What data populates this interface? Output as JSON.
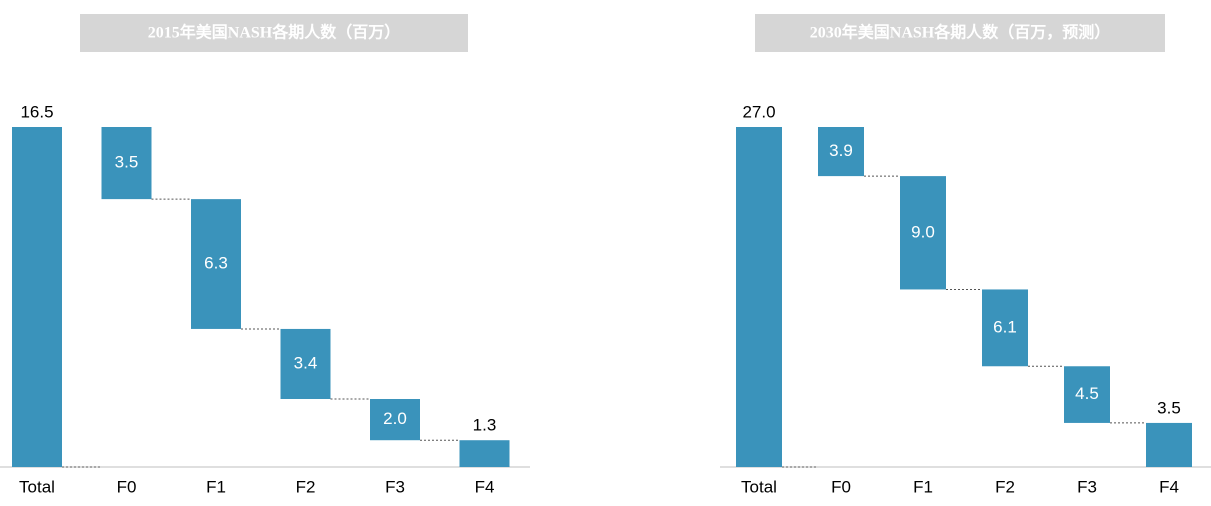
{
  "chart_data": [
    {
      "type": "waterfall",
      "title": "2015年美国NASH各期人数（百万）",
      "categories": [
        "Total",
        "F0",
        "F1",
        "F2",
        "F3",
        "F4"
      ],
      "values": [
        16.5,
        3.5,
        6.3,
        3.4,
        2.0,
        1.3
      ],
      "value_labels": [
        "16.5",
        "3.5",
        "6.3",
        "3.4",
        "2.0",
        "1.3"
      ],
      "color": "#3a93bb"
    },
    {
      "type": "waterfall",
      "title": "2030年美国NASH各期人数（百万，预测）",
      "categories": [
        "Total",
        "F0",
        "F1",
        "F2",
        "F3",
        "F4"
      ],
      "values": [
        27.0,
        3.9,
        9.0,
        6.1,
        4.5,
        3.5
      ],
      "value_labels": [
        "27.0",
        "3.9",
        "9.0",
        "6.1",
        "4.5",
        "3.5"
      ],
      "color": "#3a93bb"
    }
  ]
}
